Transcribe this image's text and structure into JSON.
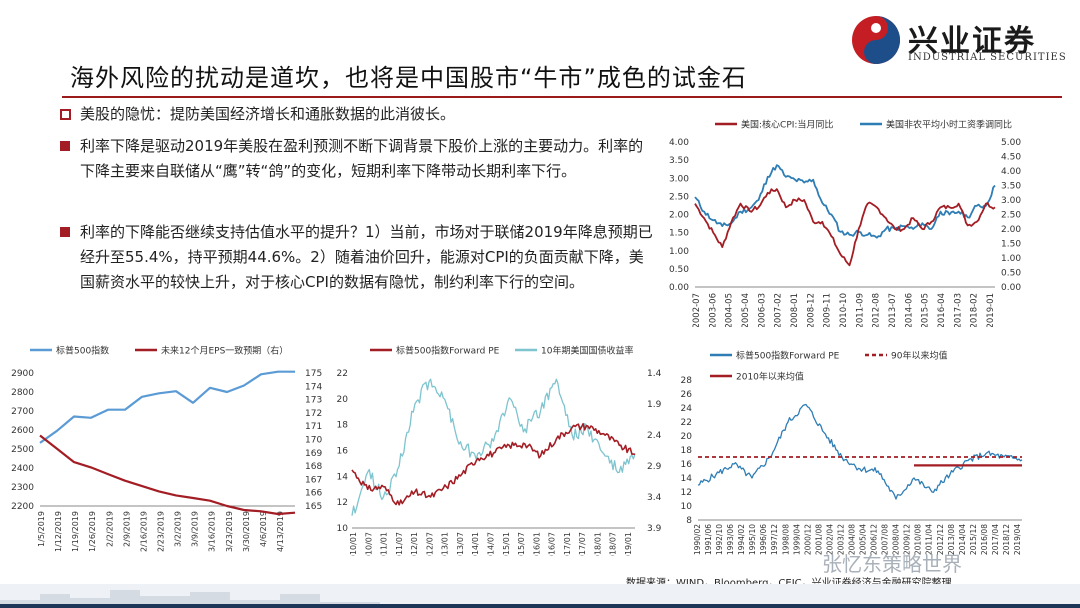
{
  "brand": {
    "name": "兴业证券",
    "name_en": "INDUSTRIAL SECURITIES"
  },
  "title": "海外风险的扰动是道坎，也将是中国股市“牛市”成色的试金石",
  "bullets": [
    "美股的隐忧：提防美国经济增长和通胀数据的此消彼长。",
    "利率下降是驱动2019年美股在盈利预测不断下调背景下股价上涨的主要动力。利率的下降主要来自联储从“鹰”转“鸽”的变化，短期利率下降带动长期利率下行。",
    "利率的下降能否继续支持估值水平的提升？1）当前，市场对于联储2019年降息预期已经升至55.4%，持平预期44.6%。2）随着油价回升，能源对CPI的负面贡献下降，美国薪资水平的较快上升，对于核心CPI的数据有隐忧，制约利率下行的空间。"
  ],
  "source": "数据来源：WIND，Bloomberg，CEIC，兴业证券经济与金融研究院整理",
  "watermark": "张忆东策略世界",
  "colors": {
    "accent": "#a31d24",
    "blue": "#2e7db5",
    "navy": "#1d3557"
  },
  "chart_data": [
    {
      "type": "line",
      "legend": "top",
      "series": [
        {
          "name": "美国:核心CPI:当月同比",
          "axis": "left",
          "color": "#a31d24",
          "x": [
            "2002-07",
            "2003-01",
            "2003-06",
            "2004-01",
            "2004-06",
            "2005-01",
            "2005-06",
            "2006-01",
            "2006-06",
            "2007-01",
            "2007-06",
            "2008-01",
            "2008-06",
            "2009-01",
            "2009-06",
            "2010-01",
            "2010-06",
            "2010-10",
            "2011-06",
            "2012-01",
            "2012-06",
            "2013-01",
            "2013-06",
            "2014-01",
            "2014-06",
            "2015-01",
            "2015-06",
            "2016-01",
            "2016-06",
            "2017-01",
            "2017-06",
            "2018-01",
            "2018-06",
            "2019-01"
          ],
          "values": [
            2.3,
            1.9,
            1.5,
            1.1,
            1.8,
            2.3,
            2.1,
            2.2,
            2.6,
            2.7,
            2.2,
            2.4,
            2.4,
            1.8,
            1.8,
            1.4,
            0.9,
            0.6,
            1.6,
            2.3,
            2.2,
            1.9,
            1.6,
            1.6,
            1.9,
            1.6,
            1.8,
            2.2,
            2.2,
            2.3,
            1.7,
            1.8,
            2.3,
            2.2
          ]
        },
        {
          "name": "美国非农平均小时工资季调同比",
          "axis": "right",
          "color": "#2e7db5",
          "x": [
            "2002-07",
            "2003-01",
            "2003-06",
            "2004-01",
            "2004-06",
            "2005-01",
            "2005-06",
            "2006-01",
            "2006-06",
            "2007-01",
            "2007-06",
            "2008-01",
            "2008-06",
            "2009-01",
            "2009-06",
            "2010-01",
            "2010-06",
            "2010-10",
            "2011-06",
            "2012-01",
            "2012-06",
            "2013-01",
            "2013-06",
            "2014-01",
            "2014-06",
            "2015-01",
            "2015-06",
            "2016-01",
            "2016-06",
            "2017-01",
            "2017-06",
            "2018-01",
            "2018-06",
            "2019-01"
          ],
          "values": [
            3.1,
            2.6,
            2.3,
            2.1,
            2.2,
            2.6,
            2.7,
            3.0,
            3.8,
            4.2,
            3.8,
            3.7,
            3.6,
            3.7,
            2.9,
            2.5,
            1.9,
            1.8,
            1.9,
            1.8,
            1.7,
            2.0,
            2.0,
            2.1,
            2.0,
            2.2,
            2.0,
            2.6,
            2.5,
            2.6,
            2.4,
            2.8,
            2.8,
            3.5
          ]
        }
      ],
      "x_tick_labels": [
        "2002-07",
        "2003-06",
        "2004-05",
        "2005-04",
        "2006-03",
        "2007-02",
        "2008-01",
        "2008-12",
        "2009-11",
        "2010-10",
        "2011-09",
        "2012-08",
        "2013-07",
        "2014-06",
        "2015-05",
        "2016-04",
        "2017-03",
        "2018-02",
        "2019-01"
      ],
      "y_left": {
        "min": 0,
        "max": 4,
        "ticks": [
          "0.00",
          "0.50",
          "1.00",
          "1.50",
          "2.00",
          "2.50",
          "3.00",
          "3.50",
          "4.00"
        ]
      },
      "y_right": {
        "min": 0,
        "max": 5,
        "ticks": [
          "0.00",
          "0.50",
          "1.00",
          "1.50",
          "2.00",
          "2.50",
          "3.00",
          "3.50",
          "4.00",
          "4.50",
          "5.00"
        ]
      }
    },
    {
      "type": "line",
      "legend": "top",
      "x": [
        "1/5/2019",
        "1/12/2019",
        "1/19/2019",
        "1/26/2019",
        "2/2/2019",
        "2/9/2019",
        "2/16/2019",
        "2/23/2019",
        "3/2/2019",
        "3/9/2019",
        "3/16/2019",
        "3/23/2019",
        "3/30/2019",
        "4/6/2019",
        "4/13/2019",
        "4/20/2019"
      ],
      "x_tick_labels": [
        "1/5/2019",
        "1/12/2019",
        "1/19/2019",
        "1/26/2019",
        "2/2/2019",
        "2/9/2019",
        "2/16/2019",
        "2/23/2019",
        "3/2/2019",
        "3/9/2019",
        "3/16/2019",
        "3/23/2019",
        "3/30/2019",
        "4/6/2019",
        "4/13/2019"
      ],
      "series": [
        {
          "name": "标普500指数",
          "axis": "left",
          "color": "#5b9bd5",
          "values": [
            2532,
            2596,
            2671,
            2664,
            2707,
            2707,
            2775,
            2793,
            2804,
            2743,
            2822,
            2800,
            2834,
            2893,
            2907,
            2907
          ]
        },
        {
          "name": "未来12个月EPS一致预期（右）",
          "axis": "right",
          "color": "#a31d24",
          "values": [
            170.3,
            169.3,
            168.3,
            167.9,
            167.4,
            166.9,
            166.5,
            166.1,
            165.8,
            165.6,
            165.4,
            165.0,
            164.7,
            164.6,
            164.4,
            164.5
          ]
        }
      ],
      "y_left": {
        "min": 2200,
        "max": 2900,
        "ticks": [
          "2200",
          "2300",
          "2400",
          "2500",
          "2600",
          "2700",
          "2800",
          "2900"
        ]
      },
      "y_right": {
        "min": 165,
        "max": 175,
        "ticks": [
          "165",
          "166",
          "167",
          "168",
          "169",
          "170",
          "171",
          "172",
          "173",
          "174",
          "175"
        ]
      }
    },
    {
      "type": "line",
      "legend": "top",
      "x": [
        "2010-01",
        "2010-07",
        "2011-01",
        "2011-07",
        "2012-01",
        "2012-07",
        "2013-01",
        "2013-07",
        "2014-01",
        "2014-07",
        "2015-01",
        "2015-07",
        "2016-01",
        "2016-07",
        "2017-01",
        "2017-07",
        "2018-01",
        "2018-07",
        "2019-01"
      ],
      "x_tick_labels": [
        "2010/01",
        "2010/07",
        "2011/01",
        "2011/07",
        "2012/01",
        "2012/07",
        "2013/01",
        "2013/07",
        "2014/01",
        "2014/07",
        "2015/01",
        "2015/07",
        "2016/01",
        "2016/07",
        "2017/01",
        "2017/07",
        "2018/01",
        "2018/07",
        "2019/01"
      ],
      "series": [
        {
          "name": "标普500指数Forward PE",
          "axis": "left",
          "color": "#a31d24",
          "values": [
            14.5,
            13.0,
            13.2,
            11.8,
            12.8,
            12.4,
            13.2,
            14.2,
            15.4,
            15.8,
            16.4,
            16.5,
            15.6,
            16.9,
            17.8,
            17.9,
            17.3,
            16.4,
            15.7
          ]
        },
        {
          "name": "10年期美国国债收益率",
          "axis": "right",
          "color": "#7ec4cf",
          "values": [
            3.7,
            3.0,
            3.4,
            2.9,
            1.9,
            1.5,
            1.9,
            2.6,
            2.7,
            2.5,
            1.8,
            2.3,
            2.0,
            1.5,
            2.4,
            2.3,
            2.7,
            3.0,
            2.7
          ]
        }
      ],
      "y_left": {
        "min": 10,
        "max": 22,
        "ticks": [
          "10",
          "12",
          "14",
          "16",
          "18",
          "20",
          "22"
        ]
      },
      "y_right": {
        "min": 1.4,
        "max": 3.9,
        "inverted": true,
        "ticks": [
          "1.4",
          "1.9",
          "2.4",
          "2.9",
          "3.4",
          "3.9"
        ]
      }
    },
    {
      "type": "line",
      "legend": "top",
      "x": [
        "1990-02",
        "1991-10",
        "1993-06",
        "1995-02",
        "1996-10",
        "1998-06",
        "2000-02",
        "2001-10",
        "2003-06",
        "2005-02",
        "2006-10",
        "2008-06",
        "2010-02",
        "2011-10",
        "2013-06",
        "2015-02",
        "2016-10",
        "2018-06",
        "2019-04"
      ],
      "x_tick_labels": [
        "1990/02",
        "1991/06",
        "1992/10",
        "1993/06",
        "1994/02",
        "1995/10",
        "1996/06",
        "1997/12",
        "1998/08",
        "1999/04",
        "2000/12",
        "2001/08",
        "2002/04",
        "2003/12",
        "2004/08",
        "2005/04",
        "2006/12",
        "2007/08",
        "2008/04",
        "2009/12",
        "2010/08",
        "2011/04",
        "2012/12",
        "2013/08",
        "2014/04",
        "2015/12",
        "2016/08",
        "2017/04",
        "2018/12",
        "2019/04"
      ],
      "series": [
        {
          "name": "标普500指数Forward PE",
          "color": "#2e7db5",
          "values": [
            13.0,
            14.5,
            16.0,
            14.0,
            17.0,
            22.0,
            24.5,
            20.5,
            17.0,
            15.3,
            15.0,
            11.0,
            14.0,
            12.0,
            14.5,
            16.5,
            17.5,
            17.0,
            16.6
          ]
        },
        {
          "name": "90年以来均值",
          "color": "#a31d24",
          "style": "dashed",
          "value": 17.0
        },
        {
          "name": "2010年以来均值",
          "color": "#a31d24",
          "from": "2010-01",
          "value": 15.8
        }
      ],
      "y": {
        "min": 8,
        "max": 28,
        "ticks": [
          "8",
          "10",
          "12",
          "14",
          "16",
          "18",
          "20",
          "22",
          "24",
          "26",
          "28"
        ]
      }
    }
  ]
}
